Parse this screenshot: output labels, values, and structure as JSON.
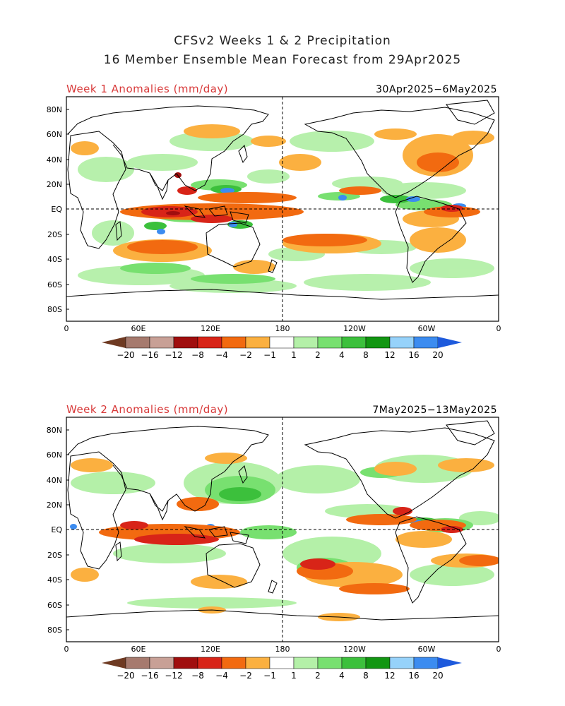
{
  "header": {
    "line1": "CFSv2 Weeks 1 & 2 Precipitation",
    "line2": "16 Member Ensemble Mean Forecast from 29Apr2025"
  },
  "panels": [
    {
      "title": "Week 1 Anomalies (mm/day)",
      "dates": "30Apr2025−6May2025"
    },
    {
      "title": "Week 2 Anomalies (mm/day)",
      "dates": "7May2025−13May2025"
    }
  ],
  "axes": {
    "lat_labels": [
      "80N",
      "60N",
      "40N",
      "20N",
      "EQ",
      "20S",
      "40S",
      "60S",
      "80S"
    ],
    "lon_labels": [
      "0",
      "60E",
      "120E",
      "180",
      "120W",
      "60W",
      "0"
    ]
  },
  "colorbar": {
    "labels": [
      "−20",
      "−16",
      "−12",
      "−8",
      "−4",
      "−2",
      "−1",
      "1",
      "2",
      "4",
      "8",
      "12",
      "16",
      "20"
    ],
    "colors": [
      "#6e3a22",
      "#a67a6e",
      "#c8a096",
      "#a00e0e",
      "#d82418",
      "#f26a10",
      "#fbb040",
      "#ffffff",
      "#b4f0a8",
      "#78e070",
      "#3cc03c",
      "#129612",
      "#96d2fa",
      "#3c8cf0",
      "#1e5adc"
    ]
  }
}
